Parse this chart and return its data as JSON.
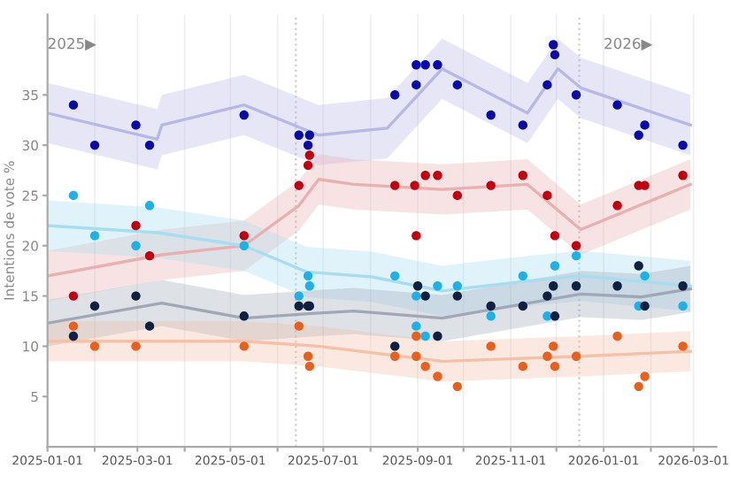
{
  "chart_data": {
    "type": "scatter",
    "ylabel": "Intentions de vote %",
    "xlim": [
      "2025-01-01",
      "2026-03-16"
    ],
    "ylim": [
      0,
      43
    ],
    "xticks": [
      {
        "value": "2025-01-01",
        "label": "2025-01-01"
      },
      {
        "value": "2025-02-01",
        "label": null
      },
      {
        "value": "2025-03-01",
        "label": "2025-03-01"
      },
      {
        "value": "2025-04-01",
        "label": null
      },
      {
        "value": "2025-05-01",
        "label": "2025-05-01"
      },
      {
        "value": "2025-06-01",
        "label": null
      },
      {
        "value": "2025-07-01",
        "label": "2025-07-01"
      },
      {
        "value": "2025-08-01",
        "label": null
      },
      {
        "value": "2025-09-01",
        "label": "2025-09-01"
      },
      {
        "value": "2025-10-01",
        "label": null
      },
      {
        "value": "2025-11-01",
        "label": "2025-11-01"
      },
      {
        "value": "2025-12-01",
        "label": null
      },
      {
        "value": "2026-01-01",
        "label": "2026-01-01"
      },
      {
        "value": "2026-02-01",
        "label": null
      },
      {
        "value": "2026-03-01",
        "label": "2026-03-01"
      }
    ],
    "yticks": [
      5,
      10,
      15,
      20,
      25,
      30,
      35
    ],
    "grid": "x",
    "ref_lines": [
      {
        "axis": "x",
        "value": "2025-06-13",
        "color": "#cccccc",
        "line_style": "dotted"
      },
      {
        "axis": "x",
        "value": "2025-12-16",
        "color": "#cccccc",
        "line_style": "dotted"
      }
    ],
    "annotations": [
      "2025▶",
      "2026▶"
    ],
    "series": [
      {
        "type": "line",
        "marker": "none",
        "color": "#b8b8e8",
        "x": [
          "2025-01-01",
          "2025-03-14",
          "2025-03-17",
          "2025-05-10",
          "2025-06-28",
          "2025-08-12",
          "2025-09-17",
          "2025-11-12",
          "2025-12-02",
          "2025-12-17",
          "2026-02-27"
        ],
        "values": [
          33.2,
          30.6,
          32,
          34,
          31,
          31.7,
          37.6,
          33.2,
          37.6,
          35.7,
          32
        ],
        "lower": [
          30.2,
          27.6,
          29,
          31,
          28,
          28.7,
          34.6,
          30.2,
          34.6,
          32.7,
          29
        ],
        "upper": [
          36.2,
          33.6,
          35,
          37,
          34,
          34.7,
          40.6,
          36.2,
          40.6,
          38.7,
          35
        ]
      },
      {
        "type": "line",
        "marker": "none",
        "color": "#e8b0b0",
        "x": [
          "2025-01-01",
          "2025-03-17",
          "2025-05-10",
          "2025-06-15",
          "2025-06-28",
          "2025-07-21",
          "2025-09-17",
          "2025-11-12",
          "2025-12-17",
          "2026-02-27"
        ],
        "values": [
          17,
          19.1,
          20,
          24,
          26.6,
          26.1,
          25.6,
          26.1,
          21.6,
          26.1
        ],
        "lower": [
          14.5,
          16.6,
          17.5,
          21.5,
          24.1,
          23.6,
          23.1,
          23.6,
          19.1,
          23.6
        ],
        "upper": [
          19.5,
          21.6,
          22.5,
          26.5,
          29.1,
          28.6,
          28.1,
          28.6,
          24.1,
          28.6
        ]
      },
      {
        "type": "line",
        "marker": "none",
        "color": "#a8dcf0",
        "x": [
          "2025-01-01",
          "2025-03-14",
          "2025-05-10",
          "2025-06-20",
          "2025-08-02",
          "2025-09-17",
          "2025-11-12",
          "2025-12-17",
          "2026-02-27"
        ],
        "values": [
          22,
          21.3,
          20,
          17.4,
          16.9,
          15.5,
          16.5,
          17,
          16
        ],
        "lower": [
          19.5,
          18.8,
          17.5,
          14.9,
          14.4,
          13,
          14,
          14.5,
          13.5
        ],
        "upper": [
          24.5,
          23.8,
          22.5,
          19.9,
          19.4,
          18,
          19,
          19.5,
          18.5
        ]
      },
      {
        "type": "line",
        "marker": "none",
        "color": "#a0a8b8",
        "x": [
          "2025-01-01",
          "2025-03-17",
          "2025-05-10",
          "2025-06-28",
          "2025-07-21",
          "2025-09-17",
          "2025-12-17",
          "2026-01-26",
          "2026-02-27"
        ],
        "values": [
          12.3,
          14.3,
          12.8,
          13.3,
          13.5,
          12.8,
          15.2,
          14.9,
          15.7
        ],
        "lower": [
          10,
          12,
          10.5,
          11,
          11.2,
          10.5,
          12.9,
          12.6,
          13.4
        ],
        "upper": [
          14.6,
          16.6,
          15.1,
          15.6,
          15.8,
          15.1,
          17.5,
          17.2,
          18
        ]
      },
      {
        "type": "line",
        "marker": "none",
        "color": "#f4c0a8",
        "x": [
          "2025-01-01",
          "2025-05-10",
          "2025-06-28",
          "2025-09-17",
          "2025-12-17",
          "2026-02-27"
        ],
        "values": [
          10.5,
          10.5,
          10,
          8.5,
          9,
          9.5
        ],
        "lower": [
          8.5,
          8.5,
          8,
          6.5,
          7,
          7.5
        ],
        "upper": [
          12.5,
          12.5,
          12,
          10.5,
          11,
          11.5
        ]
      },
      {
        "marker": "circle",
        "color": "#0a0aa8",
        "x": [
          "2025-01-18",
          "2025-02-01",
          "2025-02-28",
          "2025-03-09",
          "2025-05-10",
          "2025-06-15",
          "2025-06-21",
          "2025-06-22",
          "2025-08-17",
          "2025-08-31",
          "2025-08-31",
          "2025-09-06",
          "2025-09-14",
          "2025-09-27",
          "2025-10-19",
          "2025-11-09",
          "2025-11-25",
          "2025-11-29",
          "2025-11-30",
          "2025-12-14",
          "2026-01-10",
          "2026-01-24",
          "2026-01-28",
          "2026-02-22"
        ],
        "values": [
          34,
          30,
          32,
          30,
          33,
          31,
          30,
          31,
          35,
          38,
          36,
          38,
          38,
          36,
          33,
          32,
          36,
          40,
          39,
          35,
          34,
          31,
          32,
          30
        ]
      },
      {
        "marker": "circle",
        "color": "#c00010",
        "x": [
          "2025-01-18",
          "2025-02-28",
          "2025-03-09",
          "2025-05-10",
          "2025-06-15",
          "2025-06-21",
          "2025-06-22",
          "2025-08-17",
          "2025-08-30",
          "2025-08-31",
          "2025-09-06",
          "2025-09-14",
          "2025-09-27",
          "2025-10-19",
          "2025-11-09",
          "2025-11-25",
          "2025-11-30",
          "2025-12-14",
          "2026-01-10",
          "2026-01-24",
          "2026-01-28",
          "2026-02-22"
        ],
        "values": [
          15,
          22,
          19,
          21,
          26,
          28,
          29,
          26,
          26,
          21,
          27,
          27,
          25,
          26,
          27,
          25,
          21,
          20,
          24,
          26,
          26,
          27
        ]
      },
      {
        "marker": "circle",
        "color": "#20b0e8",
        "x": [
          "2025-01-18",
          "2025-02-01",
          "2025-02-28",
          "2025-03-09",
          "2025-05-10",
          "2025-06-15",
          "2025-06-21",
          "2025-06-22",
          "2025-08-17",
          "2025-08-31",
          "2025-08-31",
          "2025-09-06",
          "2025-09-14",
          "2025-09-27",
          "2025-10-19",
          "2025-11-09",
          "2025-11-25",
          "2025-11-30",
          "2025-12-14",
          "2026-01-24",
          "2026-01-28",
          "2026-02-22"
        ],
        "values": [
          25,
          21,
          20,
          24,
          20,
          15,
          17,
          16,
          17,
          15,
          12,
          11,
          16,
          16,
          13,
          17,
          13,
          18,
          19,
          14,
          17,
          14
        ]
      },
      {
        "marker": "circle",
        "color": "#102040",
        "x": [
          "2025-01-18",
          "2025-02-01",
          "2025-02-28",
          "2025-03-09",
          "2025-05-10",
          "2025-06-15",
          "2025-06-21",
          "2025-06-22",
          "2025-08-17",
          "2025-09-01",
          "2025-09-06",
          "2025-09-14",
          "2025-09-27",
          "2025-10-19",
          "2025-11-09",
          "2025-11-25",
          "2025-11-29",
          "2025-11-30",
          "2025-12-14",
          "2026-01-10",
          "2026-01-24",
          "2026-01-28",
          "2026-02-22"
        ],
        "values": [
          11,
          14,
          15,
          12,
          13,
          14,
          14,
          14,
          10,
          16,
          15,
          11,
          15,
          14,
          14,
          15,
          16,
          13,
          16,
          16,
          18,
          14,
          16
        ]
      },
      {
        "marker": "circle",
        "color": "#e86020",
        "x": [
          "2025-01-18",
          "2025-02-01",
          "2025-02-28",
          "2025-05-10",
          "2025-06-15",
          "2025-06-21",
          "2025-06-22",
          "2025-08-17",
          "2025-08-31",
          "2025-08-31",
          "2025-09-06",
          "2025-09-14",
          "2025-09-27",
          "2025-10-19",
          "2025-11-09",
          "2025-11-25",
          "2025-11-29",
          "2025-11-30",
          "2025-12-14",
          "2026-01-10",
          "2026-01-24",
          "2026-01-28",
          "2026-02-22"
        ],
        "values": [
          12,
          10,
          10,
          10,
          12,
          9,
          8,
          9,
          11,
          9,
          8,
          7,
          6,
          10,
          8,
          9,
          10,
          8,
          9,
          11,
          6,
          7,
          10
        ]
      }
    ]
  }
}
